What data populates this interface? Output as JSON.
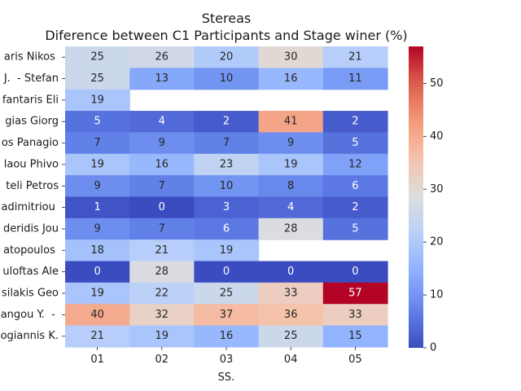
{
  "chart_data": {
    "type": "heatmap",
    "title": "Stereas",
    "subtitle": "Diference between C1 Participants and Stage winer (%)",
    "xlabel": "SS.",
    "ylabel": "",
    "x_categories": [
      "01",
      "02",
      "03",
      "04",
      "05"
    ],
    "y_categories": [
      "aris Nikos ",
      "J.  - Stefan",
      "fantaris Eli",
      "gias Giorg",
      "os Panagio",
      "laou Phivo",
      "teli Petros",
      "adimitriou ",
      "deridis Jou",
      "atopoulos ",
      "uloftas Ale",
      "silakis Geo",
      "angou Y.  - ",
      "ogiannis K."
    ],
    "values": [
      [
        25,
        26,
        20,
        30,
        21
      ],
      [
        25,
        13,
        10,
        16,
        11
      ],
      [
        19,
        null,
        null,
        null,
        null
      ],
      [
        5,
        4,
        2,
        41,
        2
      ],
      [
        7,
        9,
        7,
        9,
        5
      ],
      [
        19,
        16,
        23,
        19,
        12
      ],
      [
        9,
        7,
        10,
        8,
        6
      ],
      [
        1,
        0,
        3,
        4,
        2
      ],
      [
        9,
        7,
        6,
        28,
        5
      ],
      [
        18,
        21,
        19,
        null,
        null
      ],
      [
        0,
        28,
        0,
        0,
        0
      ],
      [
        19,
        22,
        25,
        33,
        57
      ],
      [
        40,
        32,
        37,
        36,
        33
      ],
      [
        21,
        19,
        16,
        25,
        15
      ]
    ],
    "colormap": "coolwarm",
    "vmin": 0,
    "vmax": 57,
    "colorbar_ticks": [
      0,
      10,
      20,
      30,
      40,
      50
    ],
    "grid": false
  }
}
